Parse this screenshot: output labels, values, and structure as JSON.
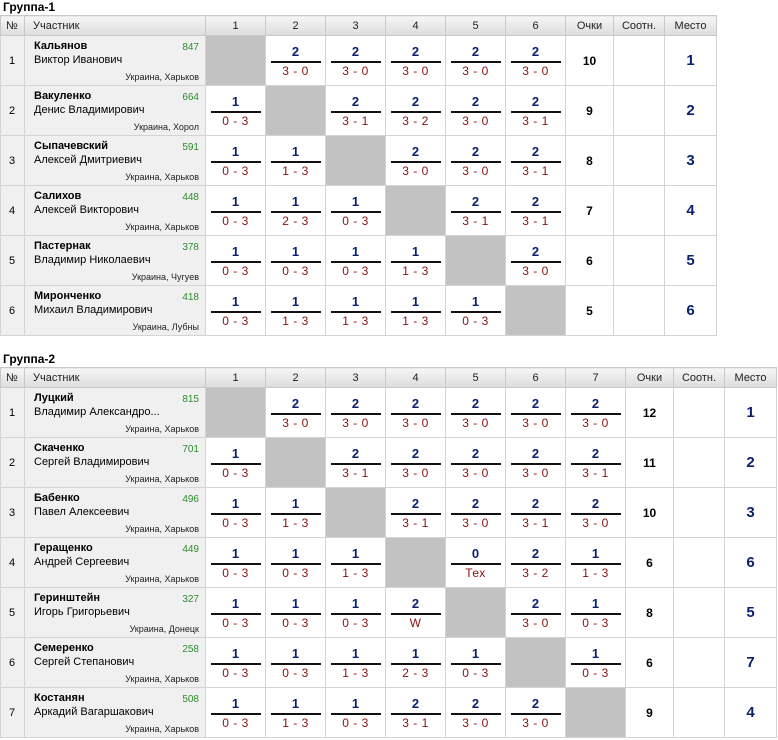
{
  "groups": [
    {
      "title": "Группа-1",
      "headers": {
        "num": "№",
        "name": "Участник",
        "points": "Очки",
        "ratio": "Соотн.",
        "place": "Место",
        "cols": [
          "1",
          "2",
          "3",
          "4",
          "5",
          "6"
        ]
      },
      "players": [
        {
          "num": "1",
          "surname": "Кальянов",
          "fullname": "Виктор Иванович",
          "rating": "847",
          "location": "Украина, Харьков",
          "points": "10",
          "ratio": "",
          "place": "1",
          "results": [
            null,
            {
              "s": "2",
              "d": "3 - 0"
            },
            {
              "s": "2",
              "d": "3 - 0"
            },
            {
              "s": "2",
              "d": "3 - 0"
            },
            {
              "s": "2",
              "d": "3 - 0"
            },
            {
              "s": "2",
              "d": "3 - 0"
            }
          ]
        },
        {
          "num": "2",
          "surname": "Вакуленко",
          "fullname": "Денис Владимирович",
          "rating": "664",
          "location": "Украина, Хорол",
          "points": "9",
          "ratio": "",
          "place": "2",
          "results": [
            {
              "s": "1",
              "d": "0 - 3"
            },
            null,
            {
              "s": "2",
              "d": "3 - 1"
            },
            {
              "s": "2",
              "d": "3 - 2"
            },
            {
              "s": "2",
              "d": "3 - 0"
            },
            {
              "s": "2",
              "d": "3 - 1"
            }
          ]
        },
        {
          "num": "3",
          "surname": "Сыпачевский",
          "fullname": "Алексей Дмитриевич",
          "rating": "591",
          "location": "Украина, Харьков",
          "points": "8",
          "ratio": "",
          "place": "3",
          "results": [
            {
              "s": "1",
              "d": "0 - 3"
            },
            {
              "s": "1",
              "d": "1 - 3"
            },
            null,
            {
              "s": "2",
              "d": "3 - 0"
            },
            {
              "s": "2",
              "d": "3 - 0"
            },
            {
              "s": "2",
              "d": "3 - 1"
            }
          ]
        },
        {
          "num": "4",
          "surname": "Салихов",
          "fullname": "Алексей Викторович",
          "rating": "448",
          "location": "Украина, Харьков",
          "points": "7",
          "ratio": "",
          "place": "4",
          "results": [
            {
              "s": "1",
              "d": "0 - 3"
            },
            {
              "s": "1",
              "d": "2 - 3"
            },
            {
              "s": "1",
              "d": "0 - 3"
            },
            null,
            {
              "s": "2",
              "d": "3 - 1"
            },
            {
              "s": "2",
              "d": "3 - 1"
            }
          ]
        },
        {
          "num": "5",
          "surname": "Пастернак",
          "fullname": "Владимир Николаевич",
          "rating": "378",
          "location": "Украина, Чугуев",
          "points": "6",
          "ratio": "",
          "place": "5",
          "results": [
            {
              "s": "1",
              "d": "0 - 3"
            },
            {
              "s": "1",
              "d": "0 - 3"
            },
            {
              "s": "1",
              "d": "0 - 3"
            },
            {
              "s": "1",
              "d": "1 - 3"
            },
            null,
            {
              "s": "2",
              "d": "3 - 0"
            }
          ]
        },
        {
          "num": "6",
          "surname": "Мирonченко",
          "fullname": "Михаил Владимирович",
          "rating": "418",
          "location": "Украина, Лубны",
          "points": "5",
          "ratio": "",
          "place": "6",
          "results": [
            {
              "s": "1",
              "d": "0 - 3"
            },
            {
              "s": "1",
              "d": "1 - 3"
            },
            {
              "s": "1",
              "d": "1 - 3"
            },
            {
              "s": "1",
              "d": "1 - 3"
            },
            {
              "s": "1",
              "d": "0 - 3"
            },
            null
          ]
        }
      ]
    },
    {
      "title": "Группа-2",
      "headers": {
        "num": "№",
        "name": "Участник",
        "points": "Очки",
        "ratio": "Соотн.",
        "place": "Место",
        "cols": [
          "1",
          "2",
          "3",
          "4",
          "5",
          "6",
          "7"
        ]
      },
      "players": [
        {
          "num": "1",
          "surname": "Луцкий",
          "fullname": "Владимир Александро...",
          "rating": "815",
          "location": "Украина, Харьков",
          "points": "12",
          "ratio": "",
          "place": "1",
          "results": [
            null,
            {
              "s": "2",
              "d": "3 - 0"
            },
            {
              "s": "2",
              "d": "3 - 0"
            },
            {
              "s": "2",
              "d": "3 - 0"
            },
            {
              "s": "2",
              "d": "3 - 0"
            },
            {
              "s": "2",
              "d": "3 - 0"
            },
            {
              "s": "2",
              "d": "3 - 0"
            }
          ]
        },
        {
          "num": "2",
          "surname": "Скаченко",
          "fullname": "Сергей Владимирович",
          "rating": "701",
          "location": "Украина, Харьков",
          "points": "11",
          "ratio": "",
          "place": "2",
          "results": [
            {
              "s": "1",
              "d": "0 - 3"
            },
            null,
            {
              "s": "2",
              "d": "3 - 1"
            },
            {
              "s": "2",
              "d": "3 - 0"
            },
            {
              "s": "2",
              "d": "3 - 0"
            },
            {
              "s": "2",
              "d": "3 - 0"
            },
            {
              "s": "2",
              "d": "3 - 1"
            }
          ]
        },
        {
          "num": "3",
          "surname": "Бабенко",
          "fullname": "Павел Алексеевич",
          "rating": "496",
          "location": "Украина, Харьков",
          "points": "10",
          "ratio": "",
          "place": "3",
          "results": [
            {
              "s": "1",
              "d": "0 - 3"
            },
            {
              "s": "1",
              "d": "1 - 3"
            },
            null,
            {
              "s": "2",
              "d": "3 - 1"
            },
            {
              "s": "2",
              "d": "3 - 0"
            },
            {
              "s": "2",
              "d": "3 - 1"
            },
            {
              "s": "2",
              "d": "3 - 0"
            }
          ]
        },
        {
          "num": "4",
          "surname": "Геращенко",
          "fullname": "Андрей Сергеевич",
          "rating": "449",
          "location": "Украина, Харьков",
          "points": "6",
          "ratio": "",
          "place": "6",
          "results": [
            {
              "s": "1",
              "d": "0 - 3"
            },
            {
              "s": "1",
              "d": "0 - 3"
            },
            {
              "s": "1",
              "d": "1 - 3"
            },
            null,
            {
              "s": "0",
              "d": "Тех"
            },
            {
              "s": "2",
              "d": "3 - 2"
            },
            {
              "s": "1",
              "d": "1 - 3"
            }
          ]
        },
        {
          "num": "5",
          "surname": "Геринштейн",
          "fullname": "Игорь Григорьевич",
          "rating": "327",
          "location": "Украина, Донецк",
          "points": "8",
          "ratio": "",
          "place": "5",
          "results": [
            {
              "s": "1",
              "d": "0 - 3"
            },
            {
              "s": "1",
              "d": "0 - 3"
            },
            {
              "s": "1",
              "d": "0 - 3"
            },
            {
              "s": "2",
              "d": "W"
            },
            null,
            {
              "s": "2",
              "d": "3 - 0"
            },
            {
              "s": "1",
              "d": "0 - 3"
            }
          ]
        },
        {
          "num": "6",
          "surname": "Семеренко",
          "fullname": "Сергей Степанович",
          "rating": "258",
          "location": "Украина, Харьков",
          "points": "6",
          "ratio": "",
          "place": "7",
          "results": [
            {
              "s": "1",
              "d": "0 - 3"
            },
            {
              "s": "1",
              "d": "0 - 3"
            },
            {
              "s": "1",
              "d": "1 - 3"
            },
            {
              "s": "1",
              "d": "2 - 3"
            },
            {
              "s": "1",
              "d": "0 - 3"
            },
            null,
            {
              "s": "1",
              "d": "0 - 3"
            }
          ]
        },
        {
          "num": "7",
          "surname": "Костанян",
          "fullname": "Аркадий Вагаршакович",
          "rating": "508",
          "location": "Украина, Харьков",
          "points": "9",
          "ratio": "",
          "place": "4",
          "results": [
            {
              "s": "1",
              "d": "0 - 3"
            },
            {
              "s": "1",
              "d": "1 - 3"
            },
            {
              "s": "1",
              "d": "0 - 3"
            },
            {
              "s": "2",
              "d": "3 - 1"
            },
            {
              "s": "2",
              "d": "3 - 0"
            },
            {
              "s": "2",
              "d": "3 - 0"
            },
            null
          ]
        }
      ]
    }
  ]
}
